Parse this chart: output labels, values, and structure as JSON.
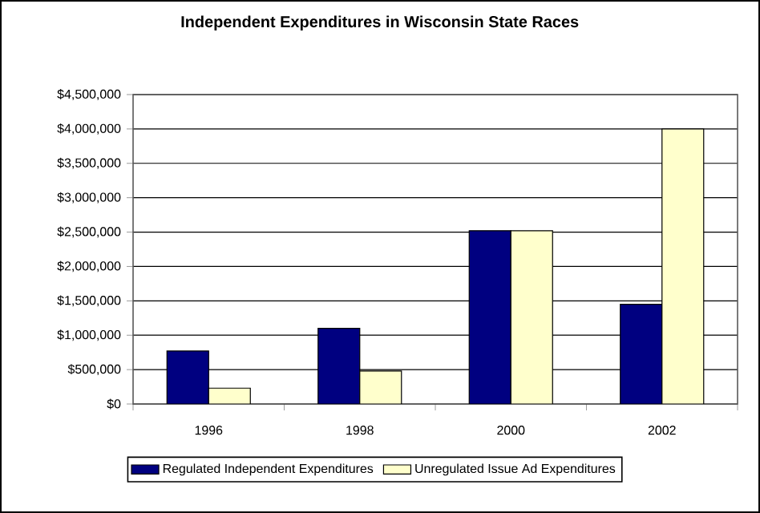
{
  "chart_data": {
    "type": "bar",
    "title": "Independent Expenditures in Wisconsin State Races",
    "categories": [
      "1996",
      "1998",
      "2000",
      "2002"
    ],
    "series": [
      {
        "name": "Regulated Independent Expenditures",
        "color": "#000080",
        "values": [
          770000,
          1100000,
          2520000,
          1450000
        ]
      },
      {
        "name": "Unregulated Issue Ad Expenditures",
        "color": "#ffffcc",
        "values": [
          230000,
          480000,
          2520000,
          4000000
        ]
      }
    ],
    "ylim": [
      0,
      4500000
    ],
    "yticks": [
      {
        "value": 0,
        "label": "$0"
      },
      {
        "value": 500000,
        "label": "$500,000"
      },
      {
        "value": 1000000,
        "label": "$1,000,000"
      },
      {
        "value": 1500000,
        "label": "$1,500,000"
      },
      {
        "value": 2000000,
        "label": "$2,000,000"
      },
      {
        "value": 2500000,
        "label": "$2,500,000"
      },
      {
        "value": 3000000,
        "label": "$3,000,000"
      },
      {
        "value": 3500000,
        "label": "$3,500,000"
      },
      {
        "value": 4000000,
        "label": "$4,000,000"
      },
      {
        "value": 4500000,
        "label": "$4,500,000"
      }
    ],
    "grid": "y",
    "legend": "bottom"
  }
}
